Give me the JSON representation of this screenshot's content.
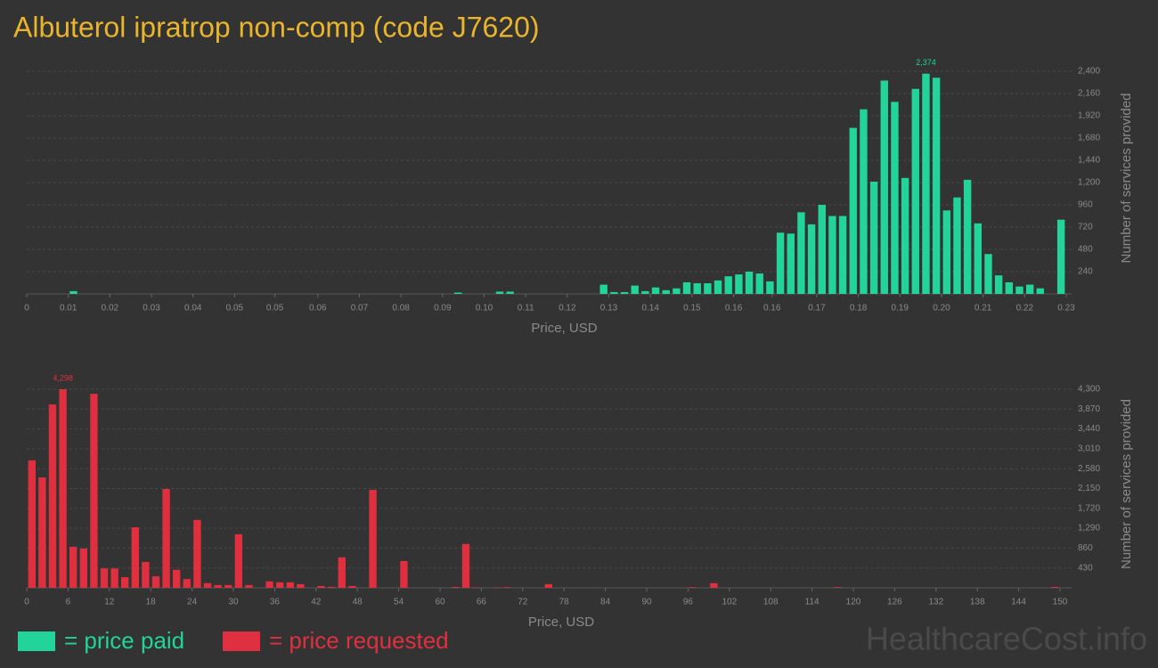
{
  "title": "Albuterol ipratrop non-comp (code J7620)",
  "chart_data": [
    {
      "type": "histogram",
      "color": "#22d39a",
      "x_label": "Price, USD",
      "y_label": "Number of services provided",
      "grid": true,
      "xlim": [
        0,
        0.23
      ],
      "ylim": [
        0,
        2400
      ],
      "bins": [
        0,
        0.0023,
        0.0046,
        0.0069,
        0.0092,
        0.0115,
        0.0138,
        0.0161,
        0.0184,
        0.0207,
        0.023,
        0.0253,
        0.0276,
        0.0299,
        0.0322,
        0.0345,
        0.0368,
        0.0391,
        0.0414,
        0.0437,
        0.046,
        0.0483,
        0.0506,
        0.0529,
        0.0552,
        0.0575,
        0.0598,
        0.0621,
        0.0644,
        0.0667,
        0.069,
        0.0713,
        0.0736,
        0.0759,
        0.0782,
        0.0805,
        0.0828,
        0.0851,
        0.0874,
        0.0897,
        0.092,
        0.0943,
        0.0966,
        0.0989,
        0.1012,
        0.1035,
        0.1058,
        0.1081,
        0.1104,
        0.1127,
        0.115,
        0.1173,
        0.1196,
        0.1219,
        0.1242,
        0.1265,
        0.1288,
        0.1311,
        0.1334,
        0.1357,
        0.138,
        0.1403,
        0.1426,
        0.1449,
        0.1472,
        0.1495,
        0.1518,
        0.1541,
        0.1564,
        0.1587,
        0.161,
        0.1633,
        0.1656,
        0.1679,
        0.1702,
        0.1725,
        0.1748,
        0.1771,
        0.1794,
        0.1817,
        0.184,
        0.1863,
        0.1886,
        0.1909,
        0.1932,
        0.1955,
        0.1978,
        0.2001,
        0.2024,
        0.2047,
        0.207,
        0.2093,
        0.2116,
        0.2139,
        0.2162,
        0.2185,
        0.2208,
        0.2231,
        0.2254,
        0.2277,
        0.23
      ],
      "values": [
        0,
        0,
        0,
        0,
        30,
        0,
        0,
        0,
        0,
        0,
        0,
        0,
        0,
        0,
        0,
        0,
        0,
        0,
        0,
        0,
        0,
        0,
        0,
        0,
        0,
        0,
        0,
        0,
        0,
        0,
        0,
        0,
        0,
        0,
        0,
        0,
        0,
        0,
        0,
        0,
        0,
        15,
        0,
        0,
        0,
        25,
        25,
        0,
        0,
        0,
        0,
        0,
        0,
        0,
        0,
        100,
        20,
        20,
        90,
        30,
        70,
        40,
        60,
        125,
        115,
        115,
        145,
        190,
        210,
        240,
        220,
        135,
        660,
        650,
        880,
        750,
        960,
        840,
        840,
        1790,
        1990,
        1210,
        2300,
        2070,
        1250,
        2210,
        2374,
        2330,
        900,
        1040,
        1230,
        760,
        430,
        200,
        125,
        80,
        100,
        60,
        0,
        800
      ],
      "peak_label": {
        "value": 2374,
        "label": "2,374"
      },
      "xticks": [
        0,
        {
          "value": 0.0092,
          "label": "0.01"
        },
        {
          "value": 0.0184,
          "label": "0.02"
        },
        {
          "value": 0.0276,
          "label": "0.03"
        },
        {
          "value": 0.0368,
          "label": "0.04"
        },
        {
          "value": 0.046,
          "label": "0.05"
        },
        {
          "value": 0.0549,
          "label": "0.05"
        },
        {
          "value": 0.0644,
          "label": "0.06"
        },
        {
          "value": 0.0736,
          "label": "0.07"
        },
        {
          "value": 0.0828,
          "label": "0.08"
        },
        {
          "value": 0.092,
          "label": "0.09"
        },
        {
          "value": 0.1012,
          "label": "0.10"
        },
        {
          "value": 0.1104,
          "label": "0.11"
        },
        {
          "value": 0.1196,
          "label": "0.12"
        },
        {
          "value": 0.1288,
          "label": "0.13"
        },
        {
          "value": 0.138,
          "label": "0.14"
        },
        {
          "value": 0.1472,
          "label": "0.15"
        },
        {
          "value": 0.1564,
          "label": "0.16"
        },
        {
          "value": 0.1649,
          "label": "0.16"
        },
        {
          "value": 0.1748,
          "label": "0.17"
        },
        {
          "value": 0.184,
          "label": "0.18"
        },
        {
          "value": 0.1932,
          "label": "0.19"
        },
        {
          "value": 0.2024,
          "label": "0.20"
        },
        {
          "value": 0.2116,
          "label": "0.21"
        },
        {
          "value": 0.2208,
          "label": "0.22"
        },
        0.23
      ],
      "yticks": [
        240,
        480,
        720,
        960,
        {
          "value": 1200,
          "label": "1,200"
        },
        {
          "value": 1440,
          "label": "1,440"
        },
        {
          "value": 1680,
          "label": "1,680"
        },
        {
          "value": 1920,
          "label": "1,920"
        },
        {
          "value": 2160,
          "label": "2,160"
        },
        {
          "value": 2400,
          "label": "2,400"
        }
      ]
    },
    {
      "type": "histogram",
      "color": "#e0303f",
      "x_label": "Price, USD",
      "y_label": "Number of services provided",
      "grid": true,
      "xlim": [
        0,
        150
      ],
      "ylim": [
        0,
        4300
      ],
      "bins": [
        0,
        1.5,
        3,
        4.5,
        6,
        7.5,
        9,
        10.5,
        12,
        13.5,
        15,
        16.5,
        18,
        19.5,
        21,
        22.5,
        24,
        25.5,
        27,
        28.5,
        30,
        31.5,
        33,
        34.5,
        36,
        37.5,
        39,
        40.5,
        42,
        43.5,
        45,
        46.5,
        48,
        49.5,
        51,
        52.5,
        54,
        55.5,
        57,
        58.5,
        60,
        61.5,
        63,
        64.5,
        66,
        67.5,
        69,
        70.5,
        72,
        73.5,
        75,
        76.5,
        78,
        79.5,
        81,
        82.5,
        84,
        85.5,
        87,
        88.5,
        90,
        91.5,
        93,
        94.5,
        96,
        97.5,
        99,
        100.5,
        102,
        103.5,
        105,
        106.5,
        108,
        109.5,
        111,
        112.5,
        114,
        115.5,
        117,
        118.5,
        120,
        121.5,
        123,
        124.5,
        126,
        127.5,
        129,
        130.5,
        132,
        133.5,
        135,
        136.5,
        138,
        139.5,
        141,
        142.5,
        144,
        145.5,
        147,
        148.5,
        150
      ],
      "values": [
        2760,
        2390,
        3970,
        4298,
        890,
        850,
        4200,
        420,
        420,
        230,
        1310,
        560,
        250,
        2140,
        390,
        190,
        1470,
        100,
        60,
        60,
        1160,
        60,
        0,
        140,
        120,
        120,
        80,
        0,
        40,
        20,
        660,
        40,
        0,
        2120,
        0,
        0,
        580,
        0,
        0,
        0,
        0,
        20,
        950,
        10,
        0,
        10,
        15,
        0,
        0,
        0,
        80,
        0,
        0,
        0,
        0,
        0,
        0,
        0,
        0,
        0,
        0,
        0,
        0,
        0,
        15,
        0,
        100,
        0,
        0,
        0,
        0,
        0,
        0,
        0,
        0,
        0,
        0,
        0,
        15,
        0,
        0,
        0,
        0,
        0,
        0,
        0,
        0,
        0,
        0,
        0,
        0,
        0,
        0,
        0,
        0,
        0,
        0,
        0,
        0,
        20
      ],
      "peak_label": {
        "value": 4298,
        "label": "4,298"
      },
      "xticks": [
        0,
        6,
        12,
        18,
        24,
        30,
        36,
        42,
        48,
        54,
        60,
        66,
        72,
        78,
        84,
        90,
        96,
        102,
        108,
        114,
        120,
        126,
        132,
        138,
        144,
        150
      ],
      "yticks": [
        430,
        860,
        {
          "value": 1290,
          "label": "1,290"
        },
        {
          "value": 1720,
          "label": "1,720"
        },
        {
          "value": 2150,
          "label": "2,150"
        },
        {
          "value": 2580,
          "label": "2,580"
        },
        {
          "value": 3010,
          "label": "3,010"
        },
        {
          "value": 3440,
          "label": "3,440"
        },
        {
          "value": 3870,
          "label": "3,870"
        },
        {
          "value": 4300,
          "label": "4,300"
        }
      ]
    }
  ],
  "legend": [
    {
      "label": "= price paid",
      "color": "#22d39a"
    },
    {
      "label": "= price requested",
      "color": "#e0303f"
    }
  ],
  "watermark": "HealthcareCost.info"
}
